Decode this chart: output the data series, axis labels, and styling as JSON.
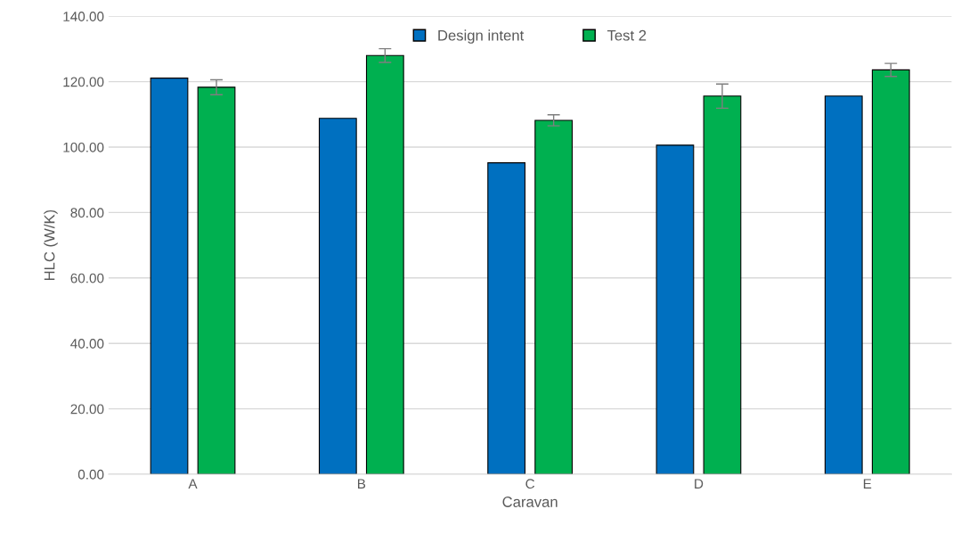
{
  "chart_data": {
    "type": "bar",
    "xlabel": "Caravan",
    "ylabel": "HLC (W/K)",
    "categories": [
      "A",
      "B",
      "C",
      "D",
      "E"
    ],
    "series": [
      {
        "name": "Design intent",
        "color": "#0070c0",
        "values": [
          121.1,
          108.8,
          95.2,
          100.6,
          115.6
        ]
      },
      {
        "name": "Test 2",
        "color": "#00b050",
        "values": [
          118.3,
          128.0,
          108.2,
          115.6,
          123.6
        ],
        "errors": [
          2.3,
          2.1,
          1.7,
          3.7,
          2.0
        ]
      }
    ],
    "ylim": [
      0,
      140
    ],
    "yticks": [
      {
        "value": 0,
        "label": "0.00"
      },
      {
        "value": 20,
        "label": "20.00"
      },
      {
        "value": 40,
        "label": "40.00"
      },
      {
        "value": 60,
        "label": "60.00"
      },
      {
        "value": 80,
        "label": "80.00"
      },
      {
        "value": 100,
        "label": "100.00"
      },
      {
        "value": 120,
        "label": "120.00"
      },
      {
        "value": 140,
        "label": "140.00"
      }
    ],
    "grid": "y",
    "legend": "top"
  }
}
